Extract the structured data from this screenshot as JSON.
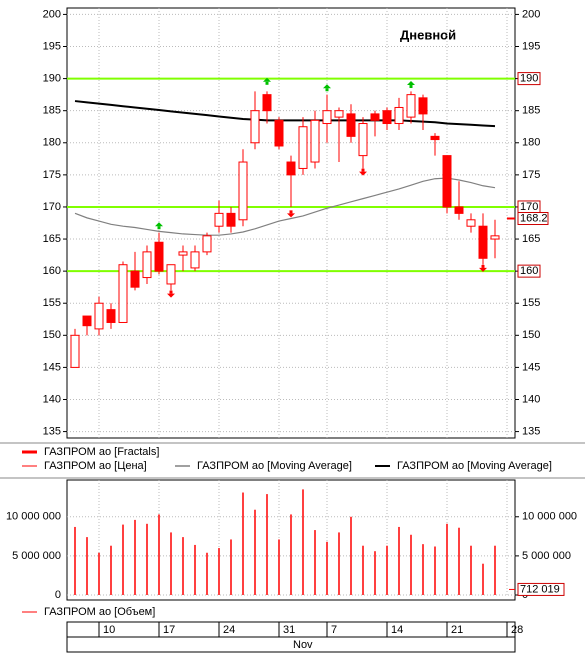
{
  "chart_data": [
    {
      "type": "candlestick",
      "title": "Дневной",
      "open": [
        145,
        153,
        151,
        154,
        152,
        160,
        159,
        164.5,
        158,
        162.5,
        160.5,
        163,
        167,
        169,
        168,
        180,
        187.5,
        183.5,
        177,
        176,
        177,
        183,
        184,
        184.5,
        178,
        184.5,
        185,
        183,
        184,
        187,
        181,
        178,
        170,
        167,
        167,
        165
      ],
      "high": [
        151,
        153,
        156,
        155,
        161.5,
        163,
        164,
        166,
        161,
        164,
        164,
        166,
        171,
        170,
        179,
        188,
        188,
        184,
        178,
        184,
        185,
        187.5,
        185.5,
        186,
        184,
        185,
        185.5,
        187,
        188,
        187.5,
        181.5,
        178,
        174,
        169,
        169,
        168
      ],
      "low": [
        145,
        150,
        150,
        151,
        152,
        157,
        158,
        159.5,
        157,
        160,
        160,
        162.5,
        166,
        166,
        167,
        179,
        183,
        179,
        170,
        175,
        176,
        180,
        177,
        180,
        176,
        181,
        182,
        182,
        183,
        182,
        178,
        169,
        168,
        166,
        161,
        162
      ],
      "close": [
        150,
        151.5,
        155,
        152,
        161,
        157.5,
        163,
        160,
        161,
        163,
        163,
        165.5,
        169,
        167,
        177,
        185,
        185,
        179.5,
        175,
        182.5,
        183.5,
        185,
        185,
        181,
        183,
        183.5,
        183,
        185.5,
        187.5,
        184.5,
        180.5,
        170,
        169,
        168,
        162,
        165.5
      ],
      "up_color": "#ffffff",
      "down_color": "#ff0000",
      "ylim": [
        134,
        201
      ],
      "yticks": [
        135,
        140,
        145,
        150,
        155,
        160,
        165,
        170,
        175,
        180,
        185,
        190,
        195,
        200
      ],
      "grid": true,
      "levels": [
        190,
        170,
        160
      ],
      "level_color": "#80ff00",
      "last_price": 168.2,
      "fractals": {
        "name": "ГАЗПРОМ ао [Fractals]",
        "up_color": "#00c000",
        "down_color": "#ff0000",
        "up": [
          null,
          null,
          null,
          null,
          null,
          null,
          null,
          167,
          null,
          null,
          null,
          null,
          null,
          null,
          null,
          null,
          189.5,
          null,
          null,
          null,
          null,
          188.5,
          null,
          null,
          null,
          null,
          null,
          null,
          189,
          null,
          null,
          null,
          null,
          null,
          null,
          null
        ],
        "down": [
          null,
          null,
          null,
          null,
          null,
          null,
          null,
          null,
          156.5,
          null,
          null,
          null,
          null,
          null,
          null,
          null,
          null,
          null,
          169,
          null,
          null,
          null,
          null,
          null,
          175.5,
          null,
          null,
          null,
          null,
          null,
          null,
          null,
          null,
          null,
          160.5,
          null
        ]
      },
      "price_name": "ГАЗПРОМ ао [Цена]",
      "series": [
        {
          "name": "ГАЗПРОМ ао [Moving Average]",
          "color": "#808080",
          "values": [
            169,
            168.3,
            167.8,
            167.3,
            167,
            166.8,
            166.5,
            166.2,
            166,
            165.8,
            165.7,
            165.6,
            165.6,
            165.8,
            166.1,
            166.6,
            167.2,
            167.8,
            168.2,
            168.6,
            169.2,
            169.8,
            170.3,
            170.8,
            171.3,
            171.8,
            172.3,
            172.8,
            173.4,
            174,
            174.4,
            174.5,
            174.2,
            173.8,
            173.3,
            173
          ]
        },
        {
          "name": "ГАЗПРОМ ао [Moving Average]",
          "color": "#000000",
          "values": [
            186.5,
            186.3,
            186.1,
            185.9,
            185.7,
            185.5,
            185.3,
            185.1,
            184.9,
            184.7,
            184.5,
            184.3,
            184.1,
            183.9,
            183.7,
            183.6,
            183.5,
            183.5,
            183.5,
            183.5,
            183.5,
            183.5,
            183.5,
            183.5,
            183.5,
            183.5,
            183.5,
            183.5,
            183.4,
            183.3,
            183.2,
            183,
            182.9,
            182.8,
            182.7,
            182.6
          ]
        }
      ]
    },
    {
      "type": "bar",
      "name": "ГАЗПРОМ ао [Объем]",
      "color": "#ff0000",
      "values": [
        8700000,
        7400000,
        5400000,
        6300000,
        9000000,
        9600000,
        9100000,
        10300000,
        8000000,
        7400000,
        6400000,
        5400000,
        6000000,
        7100000,
        13100000,
        10900000,
        12900000,
        7100000,
        10300000,
        13500000,
        8300000,
        6800000,
        8000000,
        10000000,
        6300000,
        5600000,
        6300000,
        8700000,
        7700000,
        6500000,
        6200000,
        9100000,
        8600000,
        6300000,
        4000000,
        6300000
      ],
      "ylim": [
        0,
        14700000
      ],
      "yticks": [
        0,
        {
          "value": 5000000,
          "label": "5 000 000"
        },
        {
          "value": 10000000,
          "label": "10 000 000"
        }
      ],
      "grid": true,
      "last_volume": {
        "value": 712019,
        "label": "712 019"
      },
      "xticks": [
        {
          "value": 2,
          "label": "10"
        },
        {
          "value": 7,
          "label": "17"
        },
        {
          "value": 12,
          "label": "24"
        },
        {
          "value": 17,
          "label": "31"
        },
        {
          "value": 21,
          "label": "7"
        },
        {
          "value": 26,
          "label": "14"
        },
        {
          "value": 31,
          "label": "21"
        },
        {
          "value": 36,
          "label": "28"
        }
      ],
      "month_label": "Nov"
    }
  ]
}
